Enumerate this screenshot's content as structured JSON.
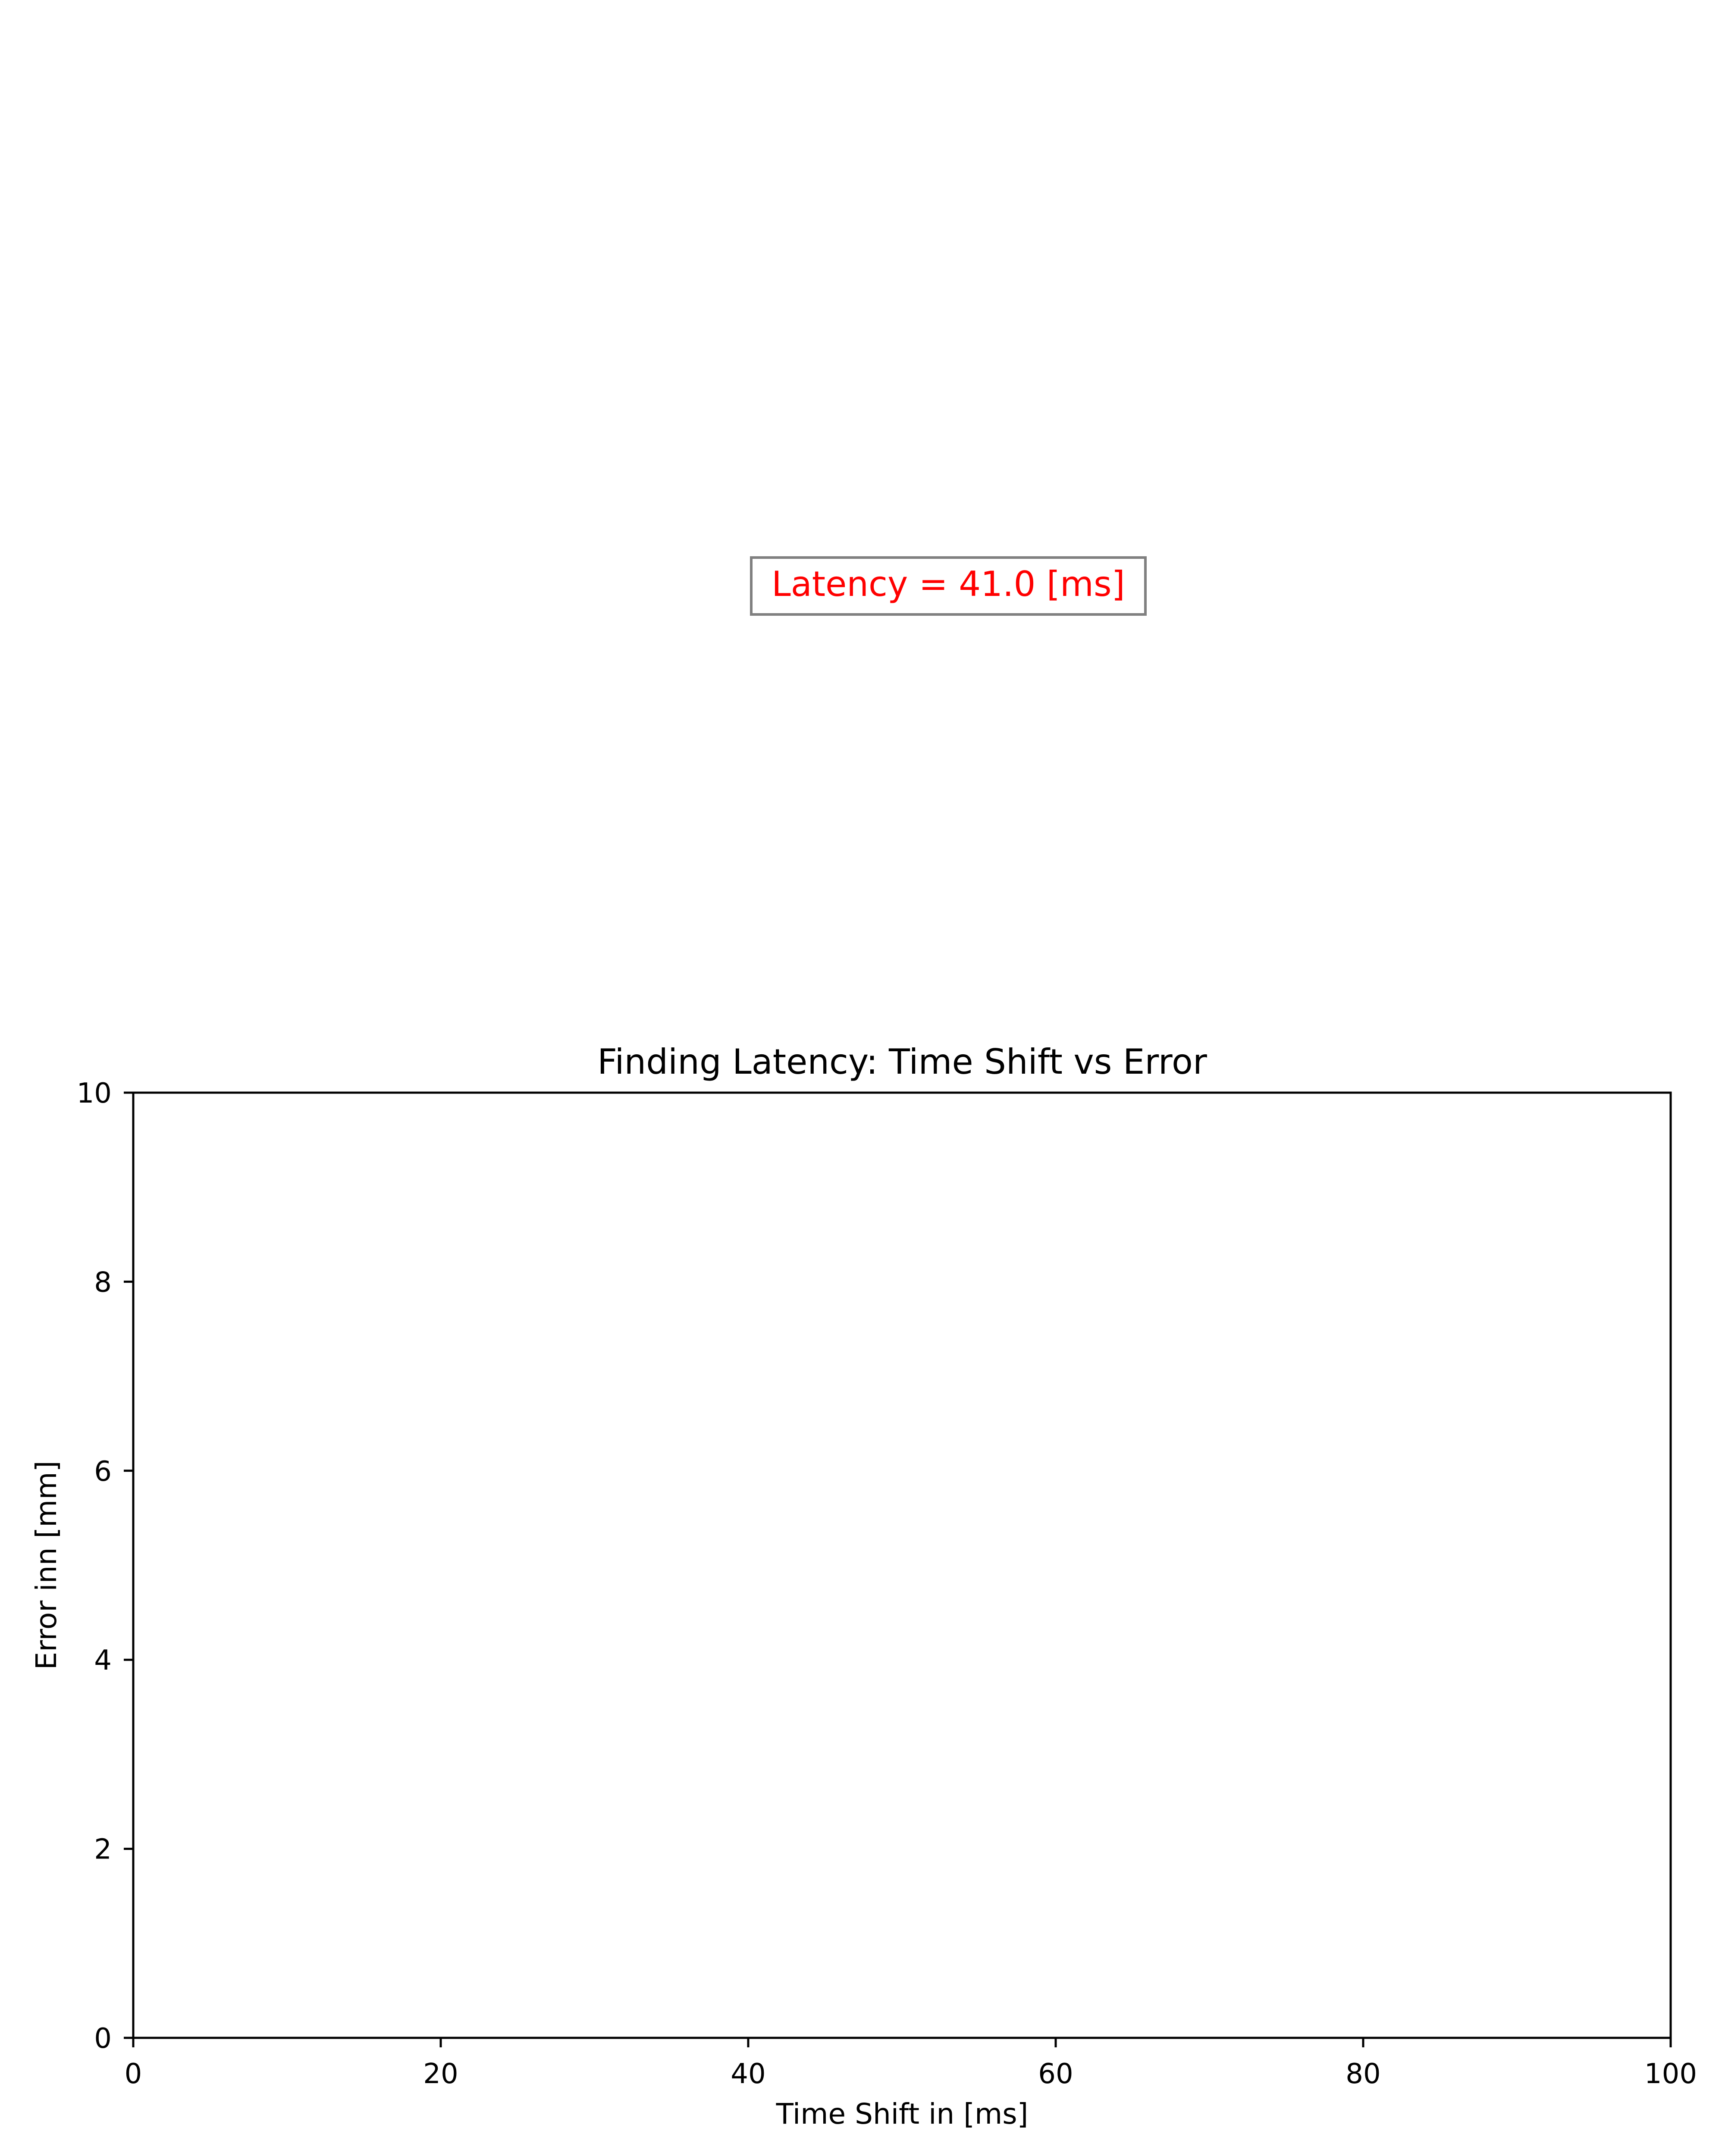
{
  "chart_data": {
    "type": "line",
    "title": "Finding Latency: Time Shift vs Error",
    "xlabel": "Time Shift in [ms]",
    "ylabel": "Error inn [mm]",
    "xlim": [
      0,
      100
    ],
    "ylim": [
      0,
      10
    ],
    "xticks": [
      "0",
      "20",
      "40",
      "60",
      "80",
      "100"
    ],
    "yticks": [
      "0",
      "2",
      "4",
      "6",
      "8",
      "10"
    ],
    "series": [],
    "grid": false,
    "annotation": {
      "text": "Latency = 41.0 [ms]",
      "color": "#ff0000",
      "border_color": "#808080"
    }
  }
}
